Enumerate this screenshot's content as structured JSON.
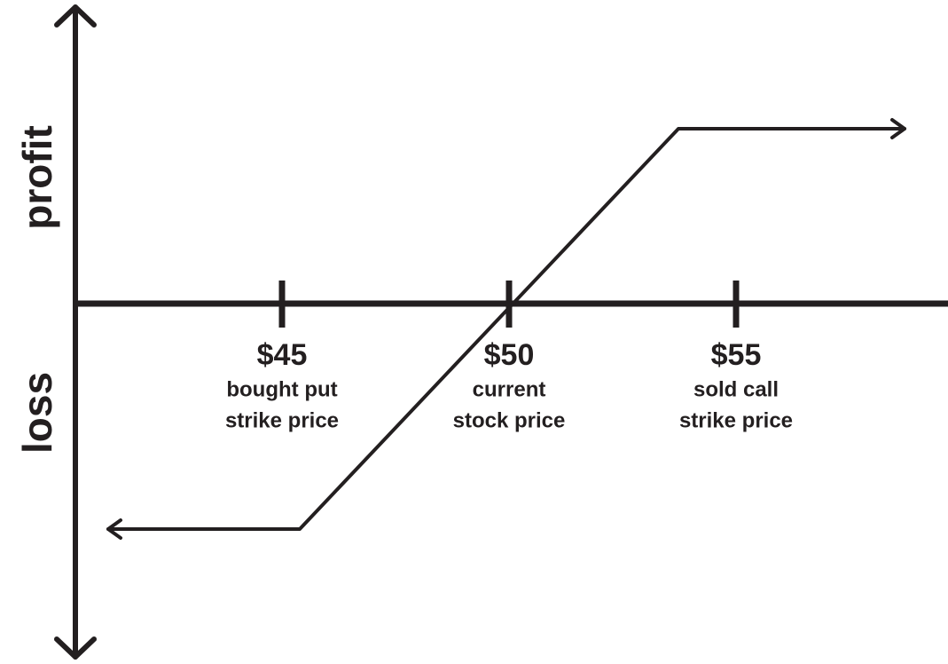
{
  "axis_labels": {
    "profit": "profit",
    "loss": "loss"
  },
  "ticks": [
    {
      "price": "$45",
      "description": [
        "bought put",
        "strike price"
      ]
    },
    {
      "price": "$50",
      "description": [
        "current",
        "stock price"
      ]
    },
    {
      "price": "$55",
      "description": [
        "sold call",
        "strike price"
      ]
    }
  ]
}
